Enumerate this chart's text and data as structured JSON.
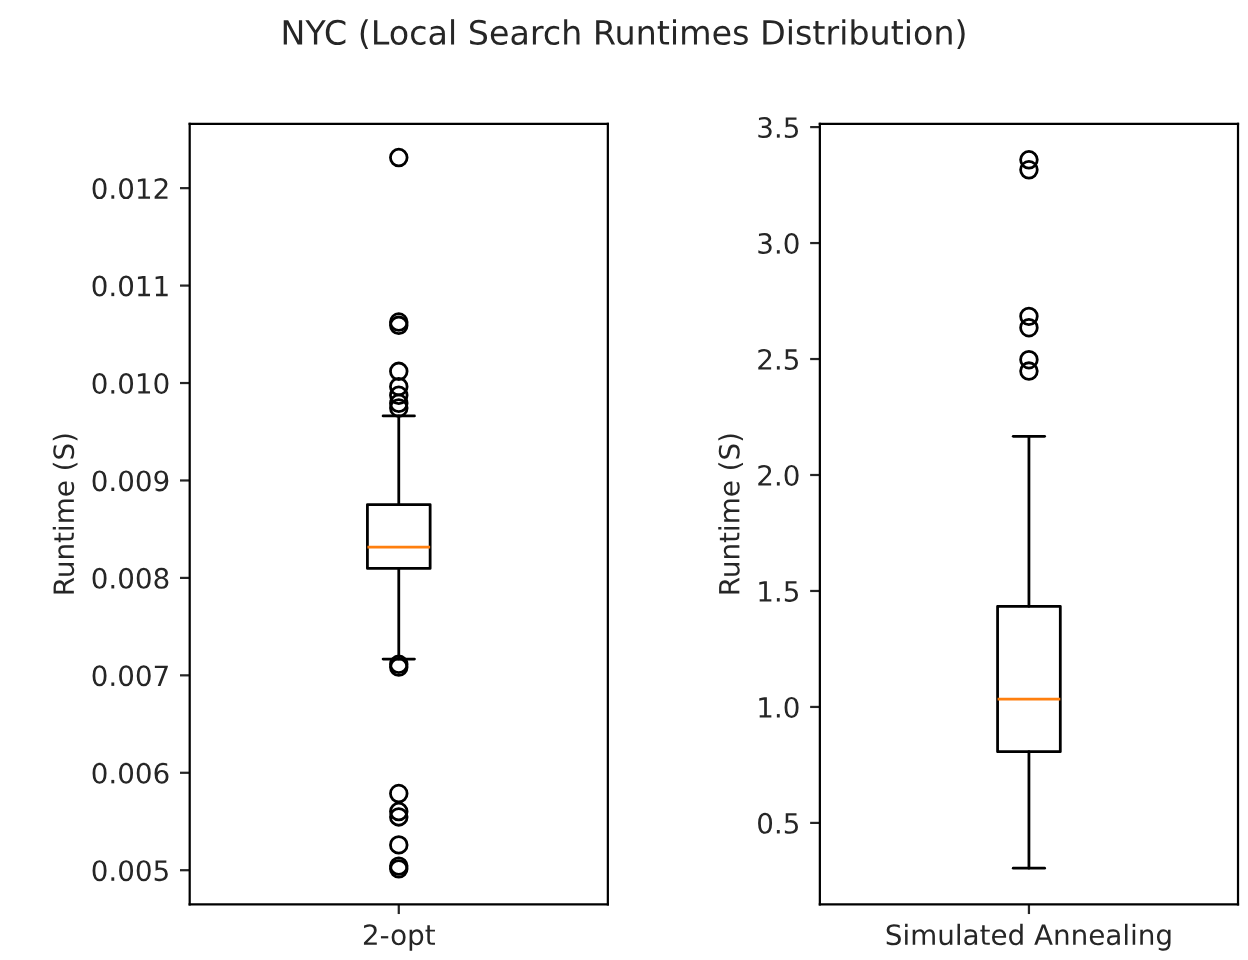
{
  "chart_data": [
    {
      "type": "box",
      "title": "NYC (Local Search Runtimes Distribution)",
      "ylabel": "Runtime (S)",
      "categories": [
        "2-opt"
      ],
      "boxes": [
        {
          "low": 0.007167,
          "q1": 0.008097,
          "median": 0.008316,
          "q3": 0.008753,
          "high": 0.009662,
          "outliers": [
            0.012314,
            0.010626,
            0.010592,
            0.01012,
            0.009963,
            0.009874,
            0.009792,
            0.009744,
            0.007113,
            0.007085,
            0.005787,
            0.005602,
            0.005547,
            0.00526,
            0.005042,
            0.005014
          ]
        }
      ],
      "ylim": [
        0.00465,
        0.01266
      ],
      "yticks": [
        {
          "value": 0.005,
          "label": "0.005"
        },
        {
          "value": 0.006,
          "label": "0.006"
        },
        {
          "value": 0.007,
          "label": "0.007"
        },
        {
          "value": 0.008,
          "label": "0.008"
        },
        {
          "value": 0.009,
          "label": "0.009"
        },
        {
          "value": 0.01,
          "label": "0.010"
        },
        {
          "value": 0.011,
          "label": "0.011"
        },
        {
          "value": 0.012,
          "label": "0.012"
        }
      ],
      "grid": false
    },
    {
      "type": "box",
      "ylabel": "Runtime (S)",
      "categories": [
        "Simulated Annealing"
      ],
      "boxes": [
        {
          "low": 0.305,
          "q1": 0.807,
          "median": 1.034,
          "q3": 1.434,
          "high": 2.167,
          "outliers": [
            3.359,
            3.316,
            2.684,
            2.635,
            2.497,
            2.448
          ]
        }
      ],
      "ylim": [
        0.149,
        3.514
      ],
      "yticks": [
        {
          "value": 0.5,
          "label": "0.5"
        },
        {
          "value": 1.0,
          "label": "1.0"
        },
        {
          "value": 1.5,
          "label": "1.5"
        },
        {
          "value": 2.0,
          "label": "2.0"
        },
        {
          "value": 2.5,
          "label": "2.5"
        },
        {
          "value": 3.0,
          "label": "3.0"
        },
        {
          "value": 3.5,
          "label": "3.5"
        }
      ],
      "grid": false
    }
  ]
}
